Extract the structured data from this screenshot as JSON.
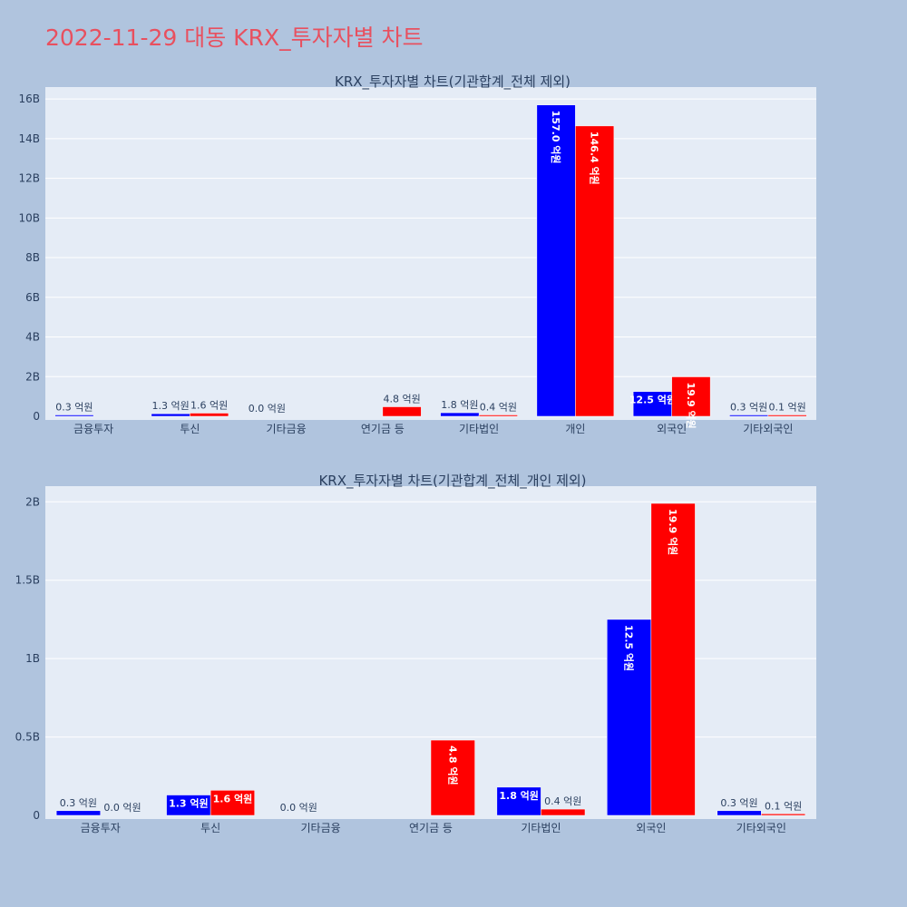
{
  "page": {
    "title": "2022-11-29 대동 KRX_투자자별 차트",
    "title_color": "#e8505f",
    "background": "#b0c4de",
    "plot_background": "#e5ecf6"
  },
  "chart_data": [
    {
      "type": "bar",
      "title": "KRX_투자자별 차트(기관합계_전체 제외)",
      "categories": [
        "금융투자",
        "투신",
        "기타금융",
        "연기금 등",
        "기타법인",
        "개인",
        "외국인",
        "기타외국인"
      ],
      "series": [
        {
          "color": "#0000ff",
          "values": [
            30000000,
            130000000,
            0,
            0,
            180000000,
            15700000000,
            1250000000,
            30000000
          ],
          "labels": [
            "0.3 억원",
            "1.3 억원",
            "0.0 억원",
            "",
            "1.8 억원",
            "157.0 억원",
            "12.5 억원",
            "0.3 억원"
          ]
        },
        {
          "color": "#ff0000",
          "values": [
            0,
            160000000,
            0,
            480000000,
            40000000,
            14640000000,
            1990000000,
            10000000
          ],
          "labels": [
            "",
            "1.6 억원",
            "",
            "4.8 억원",
            "0.4 억원",
            "146.4 억원",
            "19.9 억원",
            "0.1 억원"
          ]
        }
      ],
      "yaxis": {
        "range": [
          0,
          16600000000
        ],
        "ticks": [
          0,
          2000000000,
          4000000000,
          6000000000,
          8000000000,
          10000000000,
          12000000000,
          14000000000,
          16000000000
        ],
        "tick_labels": [
          "0",
          "2B",
          "4B",
          "6B",
          "8B",
          "10B",
          "12B",
          "14B",
          "16B"
        ]
      },
      "grid": true,
      "legend": "none"
    },
    {
      "type": "bar",
      "title": "KRX_투자자별 차트(기관합계_전체_개인 제외)",
      "categories": [
        "금융투자",
        "투신",
        "기타금융",
        "연기금 등",
        "기타법인",
        "외국인",
        "기타외국인"
      ],
      "series": [
        {
          "color": "#0000ff",
          "values": [
            30000000,
            130000000,
            0,
            0,
            180000000,
            1250000000,
            30000000
          ],
          "labels": [
            "0.3 억원",
            "1.3 억원",
            "0.0 억원",
            "",
            "1.8 억원",
            "12.5 억원",
            "0.3 억원"
          ]
        },
        {
          "color": "#ff0000",
          "values": [
            0,
            160000000,
            0,
            480000000,
            40000000,
            1990000000,
            10000000
          ],
          "labels": [
            "0.0 억원",
            "1.6 억원",
            "",
            "4.8 억원",
            "0.4 억원",
            "19.9 억원",
            "0.1 억원"
          ]
        }
      ],
      "yaxis": {
        "range": [
          0,
          2100000000
        ],
        "ticks": [
          0,
          500000000,
          1000000000,
          1500000000,
          2000000000
        ],
        "tick_labels": [
          "0",
          "0.5B",
          "1B",
          "1.5B",
          "2B"
        ]
      },
      "grid": true,
      "legend": "none"
    }
  ]
}
